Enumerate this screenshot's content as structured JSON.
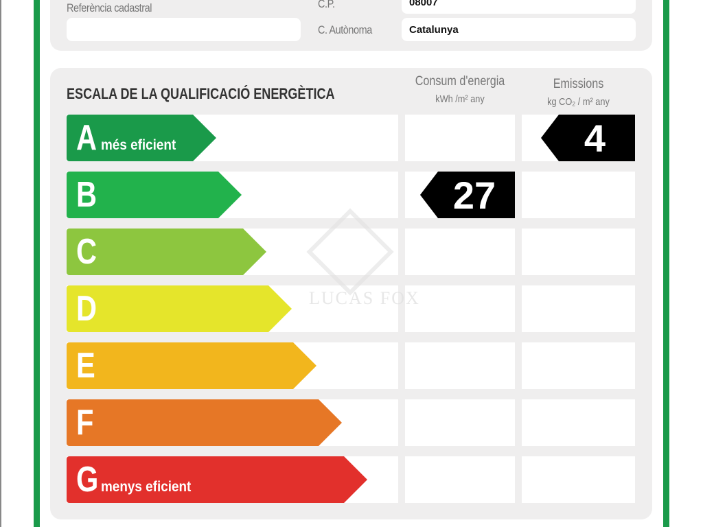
{
  "header": {
    "cadastral_label": "Referència cadastral",
    "cadastral_value": "",
    "cp_label": "C.P.",
    "cp_value": "08007",
    "region_label": "C. Autònoma",
    "region_value": "Catalunya"
  },
  "scale": {
    "title": "ESCALA DE LA QUALIFICACIÓ ENERGÈTICA",
    "consumption_header": "Consum d'energia",
    "consumption_unit": "kWh /m² any",
    "emissions_header": "Emissions",
    "emissions_unit": "kg CO₂ / m² any",
    "classes": [
      {
        "letter": "A",
        "note": "més eficient",
        "color": "#1a9a4a"
      },
      {
        "letter": "B",
        "note": "",
        "color": "#22b24c"
      },
      {
        "letter": "C",
        "note": "",
        "color": "#8dc63f"
      },
      {
        "letter": "D",
        "note": "",
        "color": "#e5e52b"
      },
      {
        "letter": "E",
        "note": "",
        "color": "#f2b61d"
      },
      {
        "letter": "F",
        "note": "",
        "color": "#e67726"
      },
      {
        "letter": "G",
        "note": "menys eficient",
        "color": "#e2302c"
      }
    ],
    "consumption": {
      "value": "27",
      "class": "B"
    },
    "emissions": {
      "value": "4",
      "class": "A"
    }
  },
  "watermark": "LUCAS FOX",
  "border_color": "#1a9a4a"
}
